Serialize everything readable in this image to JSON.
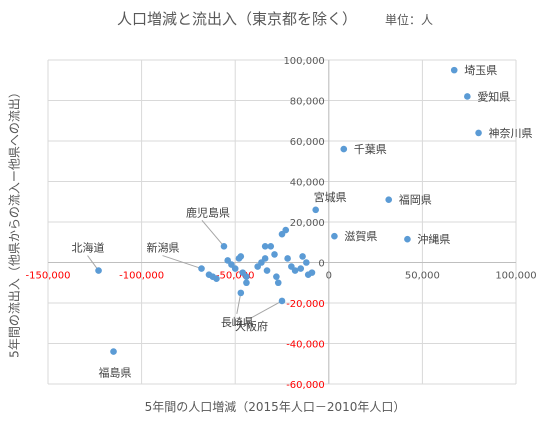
{
  "chart_data": {
    "type": "scatter",
    "title": "人口増減と流出入（東京都を除く）",
    "subtitle": "単位：人",
    "xlabel": "5年間の人口増減（2015年人口－2010年人口）",
    "ylabel": "5年間の流出入（他県からの流入ー他県への流出）",
    "xlim": [
      -150000,
      100000
    ],
    "ylim": [
      -60000,
      100000
    ],
    "xticks": [
      "-150,000",
      "-100,000",
      "-50,000",
      "0",
      "50,000",
      "100,000"
    ],
    "yticks": [
      "100,000",
      "80,000",
      "60,000",
      "40,000",
      "20,000",
      "0",
      "-20,000",
      "-40,000",
      "-60,000"
    ],
    "grid": true,
    "marker_color": "#5b9bd5",
    "negative_label_color": "#ff0000",
    "points": [
      {
        "x": 67000,
        "y": 95000,
        "label": "埼玉県"
      },
      {
        "x": 74000,
        "y": 82000,
        "label": "愛知県"
      },
      {
        "x": 80000,
        "y": 64000,
        "label": "神奈川県"
      },
      {
        "x": 8000,
        "y": 56000,
        "label": "千葉県"
      },
      {
        "x": 32000,
        "y": 31000,
        "label": "福岡県"
      },
      {
        "x": -7000,
        "y": 26000,
        "label": "宮城県"
      },
      {
        "x": 3000,
        "y": 13000,
        "label": "滋賀県"
      },
      {
        "x": 42000,
        "y": 11500,
        "label": "沖縄県"
      },
      {
        "x": -56000,
        "y": 8000,
        "label": "鹿児島県"
      },
      {
        "x": -68000,
        "y": -3000,
        "label": "新潟県"
      },
      {
        "x": -123000,
        "y": -4000,
        "label": "北海道"
      },
      {
        "x": -47000,
        "y": -15000,
        "label": "長崎県"
      },
      {
        "x": -25000,
        "y": -19000,
        "label": "大阪府"
      },
      {
        "x": -115000,
        "y": -44000,
        "label": "福島県"
      },
      {
        "x": -64000,
        "y": -6000
      },
      {
        "x": -62000,
        "y": -7000
      },
      {
        "x": -60000,
        "y": -8000
      },
      {
        "x": -54000,
        "y": 1000
      },
      {
        "x": -52000,
        "y": -1000
      },
      {
        "x": -50000,
        "y": -3000
      },
      {
        "x": -48000,
        "y": 2000
      },
      {
        "x": -47000,
        "y": 3000
      },
      {
        "x": -46000,
        "y": -5000
      },
      {
        "x": -44000,
        "y": -7000
      },
      {
        "x": -44000,
        "y": -10000
      },
      {
        "x": -38000,
        "y": -2000
      },
      {
        "x": -36000,
        "y": 0
      },
      {
        "x": -34000,
        "y": 2000
      },
      {
        "x": -33000,
        "y": -4000
      },
      {
        "x": -34000,
        "y": 8000
      },
      {
        "x": -31000,
        "y": 8000
      },
      {
        "x": -29000,
        "y": 4000
      },
      {
        "x": -28000,
        "y": -7000
      },
      {
        "x": -27000,
        "y": -10000
      },
      {
        "x": -25000,
        "y": 14000
      },
      {
        "x": -23000,
        "y": 16000
      },
      {
        "x": -22000,
        "y": 2000
      },
      {
        "x": -20000,
        "y": -2000
      },
      {
        "x": -18000,
        "y": -4000
      },
      {
        "x": -15000,
        "y": -3000
      },
      {
        "x": -14000,
        "y": 3000
      },
      {
        "x": -12000,
        "y": 0
      },
      {
        "x": -11000,
        "y": -6000
      },
      {
        "x": -9000,
        "y": -5000
      }
    ]
  }
}
